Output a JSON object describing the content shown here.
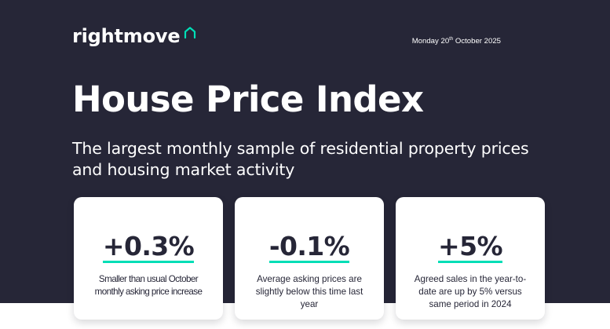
{
  "brand": {
    "name": "rightmove",
    "icon": "house-outline-icon",
    "accent_color": "#00DEB6"
  },
  "date": {
    "weekday": "Monday",
    "day": "20",
    "suffix": "th",
    "month_year": "October 2025"
  },
  "hero": {
    "title": "House Price Index",
    "subtitle": "The largest monthly sample of residential property prices and housing market activity",
    "background_color": "#262637"
  },
  "cards": [
    {
      "value": "+0.3%",
      "description": "Smaller than usual October monthly asking price increase"
    },
    {
      "value": "-0.1%",
      "description": "Average asking prices are slightly below this time last year"
    },
    {
      "value": "+5%",
      "description": "Agreed sales in the year-to-date are up by 5% versus same period in 2024"
    }
  ]
}
